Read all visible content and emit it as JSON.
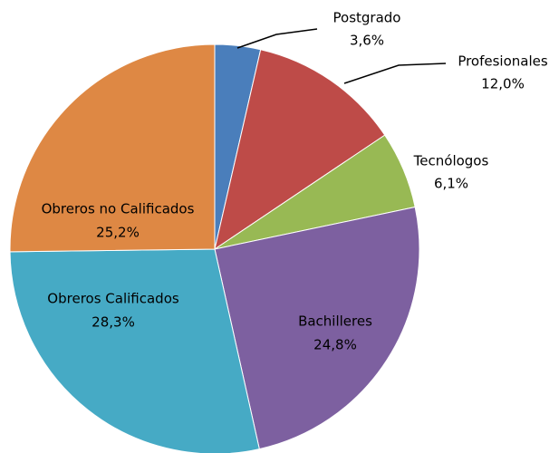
{
  "chart_data": {
    "type": "pie",
    "categories": [
      "Postgrado",
      "Profesionales",
      "Tecnólogos",
      "Bachilleres",
      "Obreros Calificados",
      "Obreros no Calificados"
    ],
    "values": [
      3.6,
      12.0,
      6.1,
      24.8,
      28.3,
      25.2
    ],
    "value_labels": [
      "3,6%",
      "12,0%",
      "6,1%",
      "24,8%",
      "28,3%",
      "25,2%"
    ],
    "colors": [
      "#4a7ebb",
      "#be4b48",
      "#98b954",
      "#7d60a0",
      "#46aac5",
      "#de8844"
    ]
  }
}
